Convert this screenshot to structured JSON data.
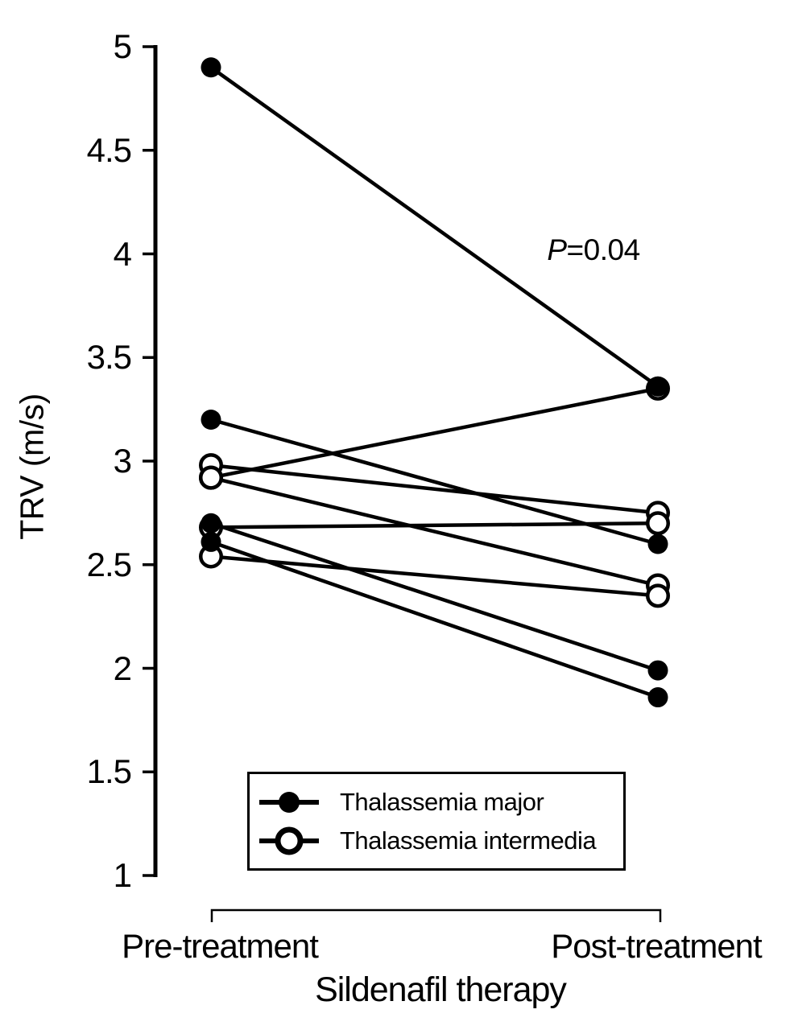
{
  "figure": {
    "background": "#ffffff",
    "ink": "#000000"
  },
  "chart_data": {
    "type": "line",
    "subtype": "paired-slope-chart",
    "title": "",
    "xlabel": "Sildenafil therapy",
    "ylabel": "TRV (m/s)",
    "categories": [
      "Pre-treatment",
      "Post-treatment"
    ],
    "ylim": [
      1,
      5
    ],
    "yticks": [
      5,
      4.5,
      4,
      3.5,
      3,
      2.5,
      2,
      1.5,
      1
    ],
    "ytick_labels": [
      "5",
      "4.5",
      "4",
      "3.5",
      "3",
      "2.5",
      "2",
      "1.5",
      "1"
    ],
    "grid": false,
    "legend_position": "inside-bottom-left-box",
    "annotation": {
      "p": "P",
      "rest": "=0.04",
      "text": "P=0.04"
    },
    "series": [
      {
        "name": "Thalassemia major",
        "marker": "filled-circle",
        "pairs": [
          [
            4.9,
            3.36
          ],
          [
            3.2,
            2.6
          ],
          [
            2.7,
            1.99
          ],
          [
            2.61,
            1.86
          ]
        ]
      },
      {
        "name": "Thalassemia intermedia",
        "marker": "open-circle",
        "pairs": [
          [
            2.98,
            2.75
          ],
          [
            2.92,
            3.35
          ],
          [
            2.92,
            2.4
          ],
          [
            2.68,
            2.7
          ],
          [
            2.54,
            2.35
          ]
        ]
      }
    ]
  }
}
